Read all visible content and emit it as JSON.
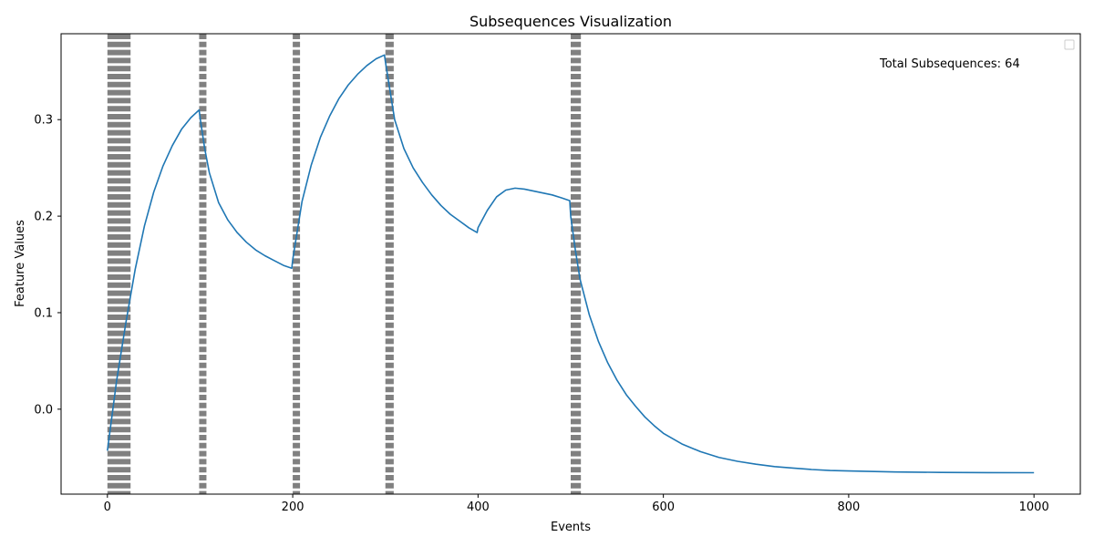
{
  "chart_data": {
    "type": "line",
    "title": "Subsequences Visualization",
    "xlabel": "Events",
    "ylabel": "Feature Values",
    "xlim": [
      -50,
      1050
    ],
    "ylim": [
      -0.088,
      0.389
    ],
    "xticks": [
      0,
      200,
      400,
      600,
      800,
      1000
    ],
    "yticks": [
      0.0,
      0.1,
      0.2,
      0.3
    ],
    "xtick_labels": [
      "0",
      "200",
      "400",
      "600",
      "800",
      "1000"
    ],
    "ytick_labels": [
      "0.0",
      "0.1",
      "0.2",
      "0.3"
    ],
    "grid": false,
    "legend": {
      "placement": "upper-right",
      "entries": []
    },
    "annotation": "Total Subsequences: 64",
    "line_color": "#1f77b4",
    "marker_color": "#808080",
    "series": [
      {
        "x": [
          0,
          10,
          20,
          30,
          40,
          50,
          60,
          70,
          80,
          90,
          99,
          100,
          105,
          110,
          120,
          130,
          140,
          150,
          160,
          170,
          180,
          190,
          199,
          200,
          205,
          210,
          220,
          230,
          240,
          250,
          260,
          270,
          280,
          290,
          299,
          300,
          305,
          310,
          320,
          330,
          340,
          350,
          360,
          370,
          380,
          390,
          399,
          400,
          410,
          420,
          430,
          440,
          450,
          460,
          470,
          480,
          490,
          499,
          500,
          505,
          510,
          520,
          530,
          540,
          550,
          560,
          570,
          580,
          590,
          600,
          620,
          640,
          660,
          680,
          700,
          720,
          740,
          760,
          780,
          800,
          850,
          900,
          950,
          1000
        ],
        "y": [
          -0.043,
          0.03,
          0.09,
          0.145,
          0.19,
          0.225,
          0.252,
          0.273,
          0.29,
          0.302,
          0.31,
          0.302,
          0.27,
          0.245,
          0.214,
          0.196,
          0.183,
          0.173,
          0.165,
          0.159,
          0.154,
          0.149,
          0.146,
          0.155,
          0.185,
          0.215,
          0.253,
          0.282,
          0.304,
          0.322,
          0.336,
          0.347,
          0.356,
          0.363,
          0.367,
          0.36,
          0.33,
          0.3,
          0.27,
          0.25,
          0.235,
          0.222,
          0.211,
          0.202,
          0.195,
          0.188,
          0.183,
          0.188,
          0.206,
          0.22,
          0.227,
          0.229,
          0.228,
          0.226,
          0.224,
          0.222,
          0.219,
          0.216,
          0.2,
          0.165,
          0.135,
          0.098,
          0.07,
          0.048,
          0.03,
          0.015,
          0.003,
          -0.008,
          -0.017,
          -0.025,
          -0.036,
          -0.044,
          -0.05,
          -0.054,
          -0.057,
          -0.0595,
          -0.061,
          -0.0625,
          -0.0635,
          -0.064,
          -0.065,
          -0.0655,
          -0.0657,
          -0.0658
        ]
      }
    ],
    "subsequence_markers": [
      {
        "x_start": 0,
        "x_end": 25
      },
      {
        "x_start": 99,
        "x_end": 105
      },
      {
        "x_start": 200,
        "x_end": 207
      },
      {
        "x_start": 300,
        "x_end": 309
      },
      {
        "x_start": 500,
        "x_end": 511
      }
    ]
  }
}
